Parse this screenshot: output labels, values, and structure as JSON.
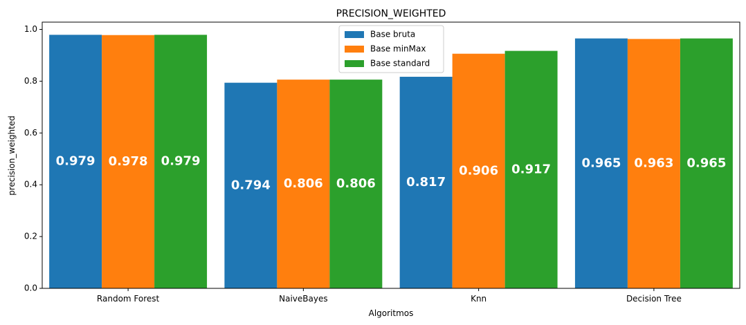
{
  "chart_data": {
    "type": "bar",
    "title": "PRECISION_WEIGHTED",
    "xlabel": "Algoritmos",
    "ylabel": "precision_weighted",
    "categories": [
      "Random Forest",
      "NaiveBayes",
      "Knn",
      "Decision Tree"
    ],
    "series": [
      {
        "name": "Base bruta",
        "color": "#1f77b4",
        "values": [
          0.979,
          0.794,
          0.817,
          0.965
        ],
        "labels": [
          "0.979",
          "0.794",
          "0.817",
          "0.965"
        ]
      },
      {
        "name": "Base minMax",
        "color": "#ff7f0e",
        "values": [
          0.978,
          0.806,
          0.906,
          0.963
        ],
        "labels": [
          "0.978",
          "0.806",
          "0.906",
          "0.963"
        ]
      },
      {
        "name": "Base standard",
        "color": "#2ca02c",
        "values": [
          0.979,
          0.806,
          0.917,
          0.965
        ],
        "labels": [
          "0.979",
          "0.806",
          "0.917",
          "0.965"
        ]
      }
    ],
    "ylim": [
      0,
      1.028
    ],
    "yticks": [
      0.0,
      0.2,
      0.4,
      0.6,
      0.8,
      1.0
    ],
    "ytick_labels": [
      "0.0",
      "0.2",
      "0.4",
      "0.6",
      "0.8",
      "1.0"
    ],
    "grid": false,
    "legend_position": "top-center"
  }
}
